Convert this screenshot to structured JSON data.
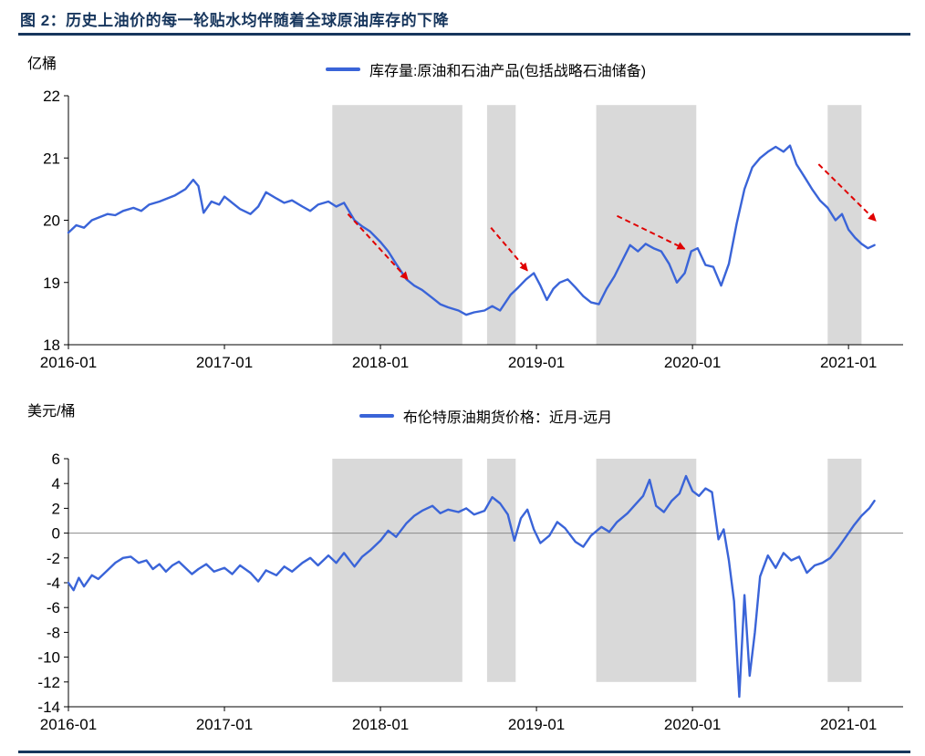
{
  "page": {
    "title": "图 2：历史上油价的每一轮贴水均伴随着全球原油库存的下降",
    "accent_color": "#17365d"
  },
  "chart_data": [
    {
      "type": "line",
      "title": "",
      "unit_label": "亿桶",
      "legend": "库存量:原油和石油产品(包括战略石油储备)",
      "line_color": "#3a64d8",
      "band_color": "#d9d9d9",
      "arrow_color": "#e00000",
      "ylim": [
        18,
        22
      ],
      "y_ticks": [
        22,
        21,
        20,
        19,
        18
      ],
      "xlim": [
        0,
        64.2
      ],
      "x_tick_months": [
        0,
        12,
        24,
        36,
        48,
        60
      ],
      "x_tick_labels": [
        "2016-01",
        "2017-01",
        "2018-01",
        "2019-01",
        "2020-01",
        "2021-01"
      ],
      "shaded_bands_months": [
        [
          20.3,
          30.3
        ],
        [
          32.2,
          34.4
        ],
        [
          40.6,
          48.3
        ],
        [
          58.4,
          61.0
        ]
      ],
      "band_vrange": [
        21.85,
        18
      ],
      "zero_line": false,
      "arrows": [
        {
          "from": [
            21.5,
            20.1
          ],
          "to": [
            26.1,
            19.05
          ]
        },
        {
          "from": [
            32.5,
            19.88
          ],
          "to": [
            35.3,
            19.19
          ]
        },
        {
          "from": [
            42.2,
            20.07
          ],
          "to": [
            47.4,
            19.54
          ]
        },
        {
          "from": [
            57.7,
            20.9
          ],
          "to": [
            62.1,
            19.99
          ]
        }
      ],
      "series": [
        {
          "name": "库存量:原油和石油产品(包括战略石油储备)",
          "points": [
            [
              0,
              19.8
            ],
            [
              0.6,
              19.92
            ],
            [
              1.2,
              19.88
            ],
            [
              1.8,
              20.0
            ],
            [
              2.4,
              20.05
            ],
            [
              3,
              20.1
            ],
            [
              3.6,
              20.08
            ],
            [
              4.2,
              20.15
            ],
            [
              5,
              20.2
            ],
            [
              5.6,
              20.15
            ],
            [
              6.2,
              20.25
            ],
            [
              7,
              20.3
            ],
            [
              7.6,
              20.35
            ],
            [
              8.2,
              20.4
            ],
            [
              9,
              20.5
            ],
            [
              9.6,
              20.65
            ],
            [
              10,
              20.55
            ],
            [
              10.4,
              20.12
            ],
            [
              11,
              20.3
            ],
            [
              11.6,
              20.25
            ],
            [
              12,
              20.38
            ],
            [
              12.6,
              20.28
            ],
            [
              13.2,
              20.18
            ],
            [
              14,
              20.1
            ],
            [
              14.6,
              20.22
            ],
            [
              15.2,
              20.45
            ],
            [
              16,
              20.35
            ],
            [
              16.6,
              20.28
            ],
            [
              17.2,
              20.32
            ],
            [
              18,
              20.22
            ],
            [
              18.6,
              20.15
            ],
            [
              19.2,
              20.25
            ],
            [
              20,
              20.3
            ],
            [
              20.6,
              20.22
            ],
            [
              21.2,
              20.28
            ],
            [
              22,
              20.0
            ],
            [
              22.6,
              19.9
            ],
            [
              23.2,
              19.82
            ],
            [
              24,
              19.65
            ],
            [
              24.6,
              19.5
            ],
            [
              25.2,
              19.3
            ],
            [
              26,
              19.05
            ],
            [
              26.6,
              18.95
            ],
            [
              27.2,
              18.88
            ],
            [
              28,
              18.75
            ],
            [
              28.6,
              18.65
            ],
            [
              29.2,
              18.6
            ],
            [
              30,
              18.55
            ],
            [
              30.6,
              18.48
            ],
            [
              31.2,
              18.52
            ],
            [
              32,
              18.55
            ],
            [
              32.6,
              18.62
            ],
            [
              33.2,
              18.55
            ],
            [
              34,
              18.8
            ],
            [
              34.6,
              18.92
            ],
            [
              35.2,
              19.05
            ],
            [
              35.8,
              19.15
            ],
            [
              36.3,
              18.95
            ],
            [
              36.8,
              18.72
            ],
            [
              37.3,
              18.9
            ],
            [
              37.8,
              19.0
            ],
            [
              38.4,
              19.05
            ],
            [
              39,
              18.92
            ],
            [
              39.6,
              18.78
            ],
            [
              40.2,
              18.68
            ],
            [
              40.8,
              18.65
            ],
            [
              41.4,
              18.9
            ],
            [
              42,
              19.1
            ],
            [
              42.6,
              19.35
            ],
            [
              43.2,
              19.6
            ],
            [
              43.8,
              19.5
            ],
            [
              44.4,
              19.62
            ],
            [
              45,
              19.55
            ],
            [
              45.6,
              19.5
            ],
            [
              46.2,
              19.3
            ],
            [
              46.8,
              19.0
            ],
            [
              47.4,
              19.15
            ],
            [
              47.9,
              19.5
            ],
            [
              48.4,
              19.55
            ],
            [
              49,
              19.28
            ],
            [
              49.6,
              19.25
            ],
            [
              50.2,
              18.95
            ],
            [
              50.8,
              19.3
            ],
            [
              51.4,
              19.95
            ],
            [
              52,
              20.5
            ],
            [
              52.6,
              20.85
            ],
            [
              53.2,
              21.0
            ],
            [
              53.8,
              21.1
            ],
            [
              54.4,
              21.18
            ],
            [
              55,
              21.1
            ],
            [
              55.5,
              21.2
            ],
            [
              56,
              20.9
            ],
            [
              56.6,
              20.7
            ],
            [
              57.2,
              20.5
            ],
            [
              57.8,
              20.32
            ],
            [
              58.4,
              20.2
            ],
            [
              59,
              20.0
            ],
            [
              59.5,
              20.1
            ],
            [
              60,
              19.85
            ],
            [
              60.5,
              19.72
            ],
            [
              61,
              19.62
            ],
            [
              61.5,
              19.55
            ],
            [
              62,
              19.6
            ]
          ]
        }
      ]
    },
    {
      "type": "line",
      "title": "",
      "unit_label": "美元/桶",
      "legend": "布伦特原油期货价格：近月-远月",
      "line_color": "#3a64d8",
      "band_color": "#d9d9d9",
      "ylim": [
        -14,
        6
      ],
      "y_ticks": [
        6,
        4,
        2,
        0,
        -2,
        -4,
        -6,
        -8,
        -10,
        -12,
        -14
      ],
      "xlim": [
        0,
        64.2
      ],
      "x_tick_months": [
        0,
        12,
        24,
        36,
        48,
        60
      ],
      "x_tick_labels": [
        "2016-01",
        "2017-01",
        "2018-01",
        "2019-01",
        "2020-01",
        "2021-01"
      ],
      "shaded_bands_months": [
        [
          20.3,
          30.3
        ],
        [
          32.2,
          34.4
        ],
        [
          40.6,
          48.3
        ],
        [
          58.4,
          61.0
        ]
      ],
      "band_vrange": [
        6,
        -12
      ],
      "zero_line": true,
      "arrows": [],
      "series": [
        {
          "name": "布伦特原油期货价格：近月-远月",
          "points": [
            [
              0,
              -4.0
            ],
            [
              0.4,
              -4.6
            ],
            [
              0.8,
              -3.6
            ],
            [
              1.2,
              -4.3
            ],
            [
              1.8,
              -3.4
            ],
            [
              2.3,
              -3.7
            ],
            [
              3,
              -3.0
            ],
            [
              3.6,
              -2.4
            ],
            [
              4.2,
              -2.0
            ],
            [
              4.8,
              -1.9
            ],
            [
              5.4,
              -2.4
            ],
            [
              6,
              -2.2
            ],
            [
              6.5,
              -2.9
            ],
            [
              7,
              -2.5
            ],
            [
              7.5,
              -3.1
            ],
            [
              8,
              -2.6
            ],
            [
              8.5,
              -2.3
            ],
            [
              9,
              -2.8
            ],
            [
              9.5,
              -3.3
            ],
            [
              10,
              -2.9
            ],
            [
              10.6,
              -2.5
            ],
            [
              11.2,
              -3.1
            ],
            [
              12,
              -2.8
            ],
            [
              12.6,
              -3.3
            ],
            [
              13.2,
              -2.6
            ],
            [
              14,
              -3.2
            ],
            [
              14.6,
              -3.9
            ],
            [
              15.2,
              -3.0
            ],
            [
              16,
              -3.4
            ],
            [
              16.6,
              -2.7
            ],
            [
              17.2,
              -3.1
            ],
            [
              18,
              -2.4
            ],
            [
              18.6,
              -2.0
            ],
            [
              19.2,
              -2.6
            ],
            [
              20,
              -1.8
            ],
            [
              20.6,
              -2.4
            ],
            [
              21.2,
              -1.6
            ],
            [
              22,
              -2.7
            ],
            [
              22.6,
              -1.9
            ],
            [
              23.2,
              -1.4
            ],
            [
              24,
              -0.6
            ],
            [
              24.6,
              0.2
            ],
            [
              25.2,
              -0.3
            ],
            [
              26,
              0.8
            ],
            [
              26.6,
              1.4
            ],
            [
              27.2,
              1.8
            ],
            [
              28,
              2.2
            ],
            [
              28.6,
              1.6
            ],
            [
              29.2,
              1.9
            ],
            [
              30,
              1.7
            ],
            [
              30.6,
              2.0
            ],
            [
              31.2,
              1.5
            ],
            [
              32,
              1.8
            ],
            [
              32.6,
              2.9
            ],
            [
              33.2,
              2.4
            ],
            [
              33.8,
              1.5
            ],
            [
              34.3,
              -0.6
            ],
            [
              34.8,
              1.2
            ],
            [
              35.3,
              1.9
            ],
            [
              35.8,
              0.3
            ],
            [
              36.3,
              -0.8
            ],
            [
              37,
              -0.2
            ],
            [
              37.6,
              0.9
            ],
            [
              38.2,
              0.4
            ],
            [
              39,
              -0.7
            ],
            [
              39.6,
              -1.1
            ],
            [
              40.2,
              -0.2
            ],
            [
              41,
              0.5
            ],
            [
              41.6,
              0.1
            ],
            [
              42.2,
              0.9
            ],
            [
              43,
              1.6
            ],
            [
              43.6,
              2.3
            ],
            [
              44.2,
              3.0
            ],
            [
              44.7,
              4.3
            ],
            [
              45.2,
              2.2
            ],
            [
              45.8,
              1.7
            ],
            [
              46.4,
              2.6
            ],
            [
              47,
              3.2
            ],
            [
              47.5,
              4.6
            ],
            [
              48,
              3.4
            ],
            [
              48.5,
              3.0
            ],
            [
              49,
              3.6
            ],
            [
              49.5,
              3.3
            ],
            [
              50,
              -0.5
            ],
            [
              50.4,
              0.3
            ],
            [
              50.8,
              -2.2
            ],
            [
              51.2,
              -5.5
            ],
            [
              51.6,
              -13.2
            ],
            [
              52,
              -5.0
            ],
            [
              52.4,
              -11.5
            ],
            [
              52.8,
              -8.0
            ],
            [
              53.2,
              -3.5
            ],
            [
              53.8,
              -1.8
            ],
            [
              54.4,
              -2.8
            ],
            [
              55,
              -1.6
            ],
            [
              55.6,
              -2.2
            ],
            [
              56.2,
              -1.9
            ],
            [
              56.8,
              -3.2
            ],
            [
              57.4,
              -2.6
            ],
            [
              58,
              -2.4
            ],
            [
              58.6,
              -2.0
            ],
            [
              59.2,
              -1.2
            ],
            [
              59.8,
              -0.3
            ],
            [
              60.4,
              0.6
            ],
            [
              61,
              1.4
            ],
            [
              61.6,
              2.0
            ],
            [
              62,
              2.6
            ]
          ]
        }
      ]
    }
  ]
}
